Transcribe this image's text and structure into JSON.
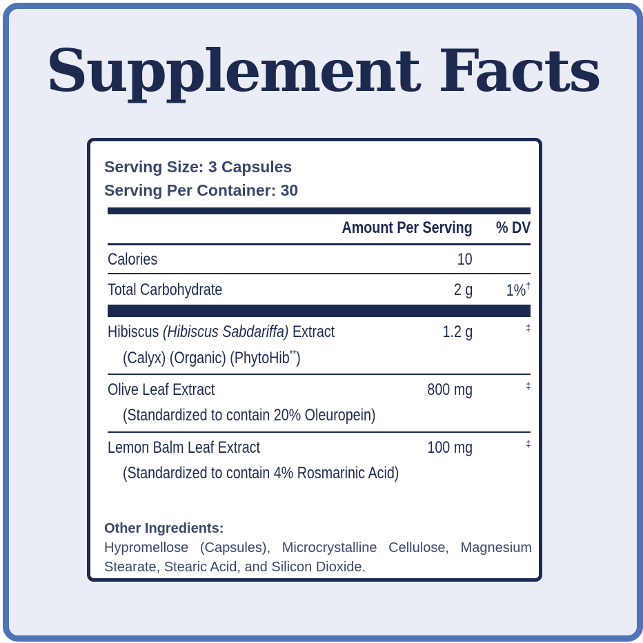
{
  "title": "Supplement Facts",
  "serving": {
    "size": "Serving Size: 3 Capsules",
    "per_container": "Serving Per Container: 30"
  },
  "table": {
    "col_amount": "Amount Per Serving",
    "col_dv": "% DV",
    "calories": {
      "name": "Calories",
      "amount": "10",
      "dv": ""
    },
    "carbs": {
      "name": "Total Carbohydrate",
      "amount": "2 g",
      "dv": "1%",
      "dv_mark": "†"
    },
    "hibiscus": {
      "name_prefix": "Hibiscus ",
      "name_latin": "(Hibiscus Sabdariffa)",
      "name_suffix": " Extract",
      "sub_prefix": "(Calyx) (Organic) (PhytoHib",
      "sub_mark": "**",
      "sub_suffix": ")",
      "amount": "1.2 g",
      "dv": "‡"
    },
    "olive": {
      "name": "Olive Leaf Extract",
      "sub": "(Standardized to contain 20% Oleuropein)",
      "amount": "800 mg",
      "dv": "‡"
    },
    "lemon": {
      "name": "Lemon Balm Leaf Extract",
      "sub": "(Standardized to contain 4% Rosmarinic Acid)",
      "amount": "100 mg",
      "dv": "‡"
    }
  },
  "other_ingredients": {
    "header": "Other Ingredients:",
    "text": "Hypromellose (Capsules), Microcrystalline Cellulose, Magnesium Stearate, Stearic Acid, and Silicon Dioxide."
  },
  "colors": {
    "navy": "#1b2a4e",
    "frame_blue": "#4e73b6",
    "frame_fill": "#eaedf6"
  }
}
